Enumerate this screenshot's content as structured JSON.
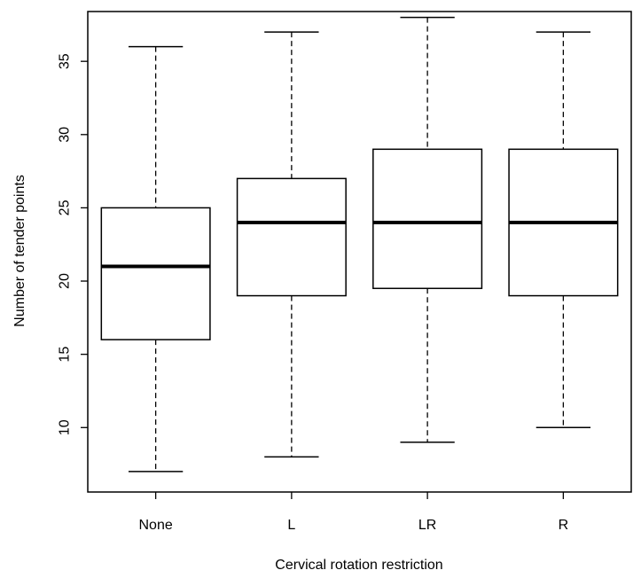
{
  "chart_data": {
    "type": "boxplot",
    "title": "",
    "xlabel": "Cervical rotation restriction",
    "ylabel": "Number of tender points",
    "ylim": [
      5.6,
      38.4
    ],
    "yticks": [
      10,
      15,
      20,
      25,
      30,
      35
    ],
    "categories": [
      "None",
      "L",
      "LR",
      "R"
    ],
    "boxes": [
      {
        "category": "None",
        "min": 7,
        "q1": 16,
        "median": 21,
        "q3": 25,
        "max": 36
      },
      {
        "category": "L",
        "min": 8,
        "q1": 19,
        "median": 24,
        "q3": 27,
        "max": 37
      },
      {
        "category": "LR",
        "min": 9,
        "q1": 19.5,
        "median": 24,
        "q3": 29,
        "max": 38
      },
      {
        "category": "R",
        "min": 10,
        "q1": 19,
        "median": 24,
        "q3": 29,
        "max": 37
      }
    ],
    "grid": false,
    "legend": "none",
    "colors": {
      "box_fill": "#ffffff",
      "stroke": "#000000"
    }
  }
}
